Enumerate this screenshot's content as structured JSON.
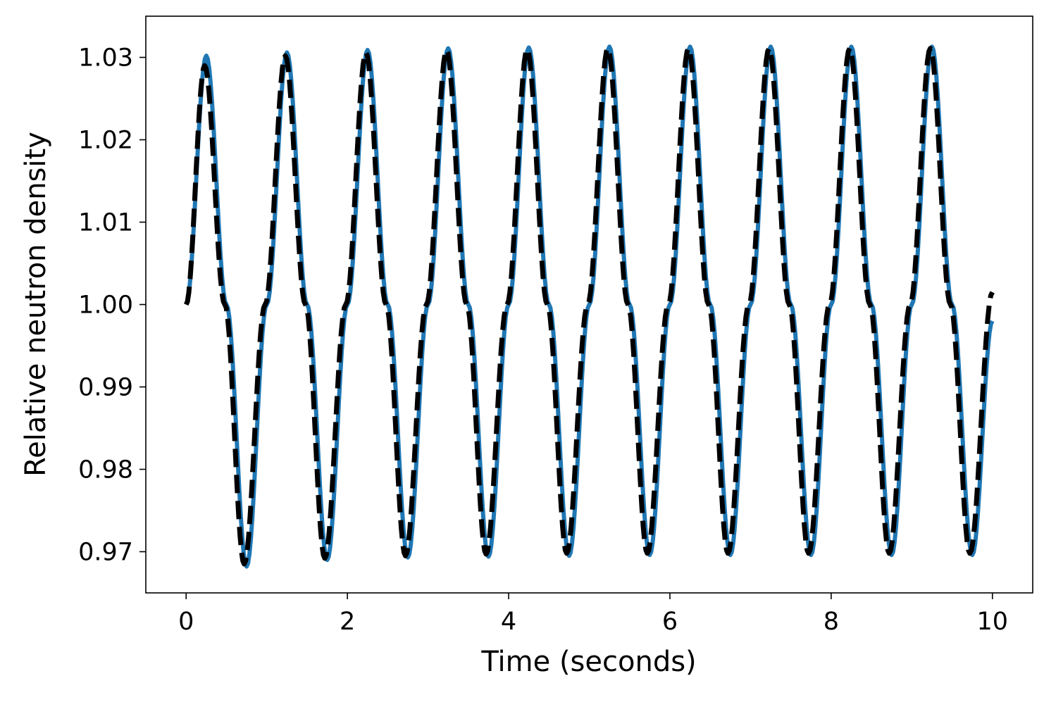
{
  "chart_data": {
    "type": "line",
    "title": "",
    "xlabel": "Time (seconds)",
    "ylabel": "Relative neutron density",
    "xlim": [
      -0.5,
      10.5
    ],
    "ylim": [
      0.965,
      1.035
    ],
    "xticks": [
      0,
      2,
      4,
      6,
      8,
      10
    ],
    "xtick_labels": [
      "0",
      "2",
      "4",
      "6",
      "8",
      "10"
    ],
    "yticks": [
      0.97,
      0.98,
      0.99,
      1.0,
      1.01,
      1.02,
      1.03
    ],
    "ytick_labels": [
      "0.97",
      "0.98",
      "0.99",
      "1.00",
      "1.01",
      "1.02",
      "1.03"
    ],
    "grid": false,
    "legend": "none",
    "series": [
      {
        "style": "solid",
        "color": "#1f77b4",
        "x": [
          0,
          0.25,
          0.5,
          0.75,
          1.0,
          1.25,
          1.5,
          1.75,
          2.0,
          2.25,
          2.5,
          2.75,
          3.0,
          3.25,
          3.5,
          3.75,
          4.0,
          4.25,
          4.5,
          4.75,
          5.0,
          5.25,
          5.5,
          5.75,
          6.0,
          6.25,
          6.5,
          6.75,
          7.0,
          7.25,
          7.5,
          7.75,
          8.0,
          8.25,
          8.5,
          8.75,
          9.0,
          9.25,
          9.5,
          9.75,
          10.0
        ],
        "y": [
          1.0,
          1.0302,
          1.0,
          0.9682,
          1.0,
          1.0306,
          1.0,
          0.969,
          1.0,
          1.0309,
          1.0,
          0.9693,
          1.0,
          1.0311,
          1.0,
          0.9694,
          1.0,
          1.0312,
          1.0,
          0.9695,
          1.0,
          1.0313,
          1.0,
          0.9696,
          1.0,
          1.0313,
          1.0,
          0.9696,
          1.0,
          1.0313,
          1.0,
          0.9696,
          1.0,
          1.0313,
          1.0,
          0.9696,
          1.0,
          1.0313,
          1.0,
          0.9696,
          0.998
        ]
      },
      {
        "style": "dashed",
        "color": "#000000",
        "x": [
          0,
          0.23,
          0.48,
          0.72,
          0.98,
          1.23,
          1.48,
          1.72,
          1.98,
          2.23,
          2.48,
          2.72,
          2.98,
          3.23,
          3.48,
          3.72,
          3.98,
          4.23,
          4.48,
          4.72,
          4.98,
          5.23,
          5.48,
          5.72,
          5.98,
          6.23,
          6.48,
          6.72,
          6.98,
          7.23,
          7.48,
          7.72,
          7.98,
          8.23,
          8.48,
          8.72,
          8.98,
          9.23,
          9.48,
          9.72,
          10.0
        ],
        "y": [
          1.0,
          1.029,
          1.0,
          0.9685,
          1.0,
          1.0302,
          1.0,
          0.9692,
          1.0,
          1.0306,
          1.0,
          0.9695,
          1.0,
          1.0309,
          1.0,
          0.9697,
          1.0,
          1.031,
          1.0,
          0.9698,
          1.0,
          1.0311,
          1.0,
          0.9698,
          1.0,
          1.0311,
          1.0,
          0.9698,
          1.0,
          1.0311,
          1.0,
          0.9698,
          1.0,
          1.0311,
          1.0,
          0.9698,
          1.0,
          1.0311,
          1.0,
          0.9698,
          1.0015
        ]
      }
    ]
  }
}
